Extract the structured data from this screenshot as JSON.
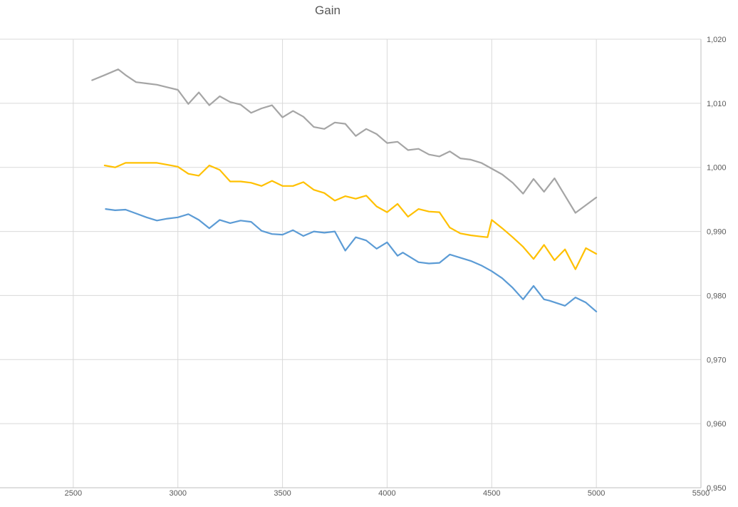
{
  "chart_data": {
    "type": "line",
    "title": "Gain",
    "xlabel": "",
    "ylabel": "",
    "xlim": [
      2000,
      5500
    ],
    "ylim": [
      0.95,
      1.02
    ],
    "x_ticks": [
      "2500",
      "3000",
      "3500",
      "4000",
      "4500",
      "5000",
      "5500"
    ],
    "y_ticks": [
      "0,950",
      "0,960",
      "0,970",
      "0,980",
      "0,990",
      "1,000",
      "1,010",
      "1,020"
    ],
    "y_axis_side": "right",
    "grid": true,
    "legend": "none",
    "series": [
      {
        "color": "#a5a5a5",
        "points": [
          [
            2590,
            1.0136
          ],
          [
            2650,
            1.0144
          ],
          [
            2715,
            1.0153
          ],
          [
            2750,
            1.0144
          ],
          [
            2800,
            1.0133
          ],
          [
            2850,
            1.0131
          ],
          [
            2900,
            1.0129
          ],
          [
            2950,
            1.0125
          ],
          [
            3000,
            1.0121
          ],
          [
            3050,
            1.0099
          ],
          [
            3100,
            1.0117
          ],
          [
            3150,
            1.0097
          ],
          [
            3200,
            1.0111
          ],
          [
            3250,
            1.0102
          ],
          [
            3300,
            1.0098
          ],
          [
            3350,
            1.0085
          ],
          [
            3400,
            1.0092
          ],
          [
            3450,
            1.0097
          ],
          [
            3500,
            1.0078
          ],
          [
            3550,
            1.0088
          ],
          [
            3600,
            1.0079
          ],
          [
            3650,
            1.0063
          ],
          [
            3700,
            1.006
          ],
          [
            3750,
            1.007
          ],
          [
            3800,
            1.0068
          ],
          [
            3850,
            1.0049
          ],
          [
            3900,
            1.006
          ],
          [
            3950,
            1.0052
          ],
          [
            4000,
            1.0038
          ],
          [
            4050,
            1.004
          ],
          [
            4100,
            1.0027
          ],
          [
            4150,
            1.0029
          ],
          [
            4200,
            1.002
          ],
          [
            4250,
            1.0017
          ],
          [
            4300,
            1.0025
          ],
          [
            4350,
            1.0014
          ],
          [
            4400,
            1.0012
          ],
          [
            4450,
            1.0007
          ],
          [
            4500,
            0.9998
          ],
          [
            4550,
            0.9989
          ],
          [
            4600,
            0.9976
          ],
          [
            4650,
            0.9959
          ],
          [
            4700,
            0.9982
          ],
          [
            4750,
            0.9962
          ],
          [
            4800,
            0.9983
          ],
          [
            4850,
            0.9956
          ],
          [
            4900,
            0.9929
          ],
          [
            5000,
            0.9953
          ]
        ]
      },
      {
        "color": "#ffc000",
        "points": [
          [
            2650,
            1.0003
          ],
          [
            2700,
            1.0
          ],
          [
            2750,
            1.0007
          ],
          [
            2800,
            1.0007
          ],
          [
            2850,
            1.0007
          ],
          [
            2900,
            1.0007
          ],
          [
            2950,
            1.0004
          ],
          [
            3000,
            1.0001
          ],
          [
            3050,
            0.999
          ],
          [
            3100,
            0.9987
          ],
          [
            3150,
            1.0003
          ],
          [
            3200,
            0.9996
          ],
          [
            3250,
            0.9978
          ],
          [
            3300,
            0.9978
          ],
          [
            3350,
            0.9976
          ],
          [
            3400,
            0.9971
          ],
          [
            3450,
            0.9979
          ],
          [
            3500,
            0.9971
          ],
          [
            3550,
            0.9971
          ],
          [
            3600,
            0.9977
          ],
          [
            3650,
            0.9965
          ],
          [
            3700,
            0.996
          ],
          [
            3750,
            0.9948
          ],
          [
            3800,
            0.9955
          ],
          [
            3850,
            0.9951
          ],
          [
            3900,
            0.9956
          ],
          [
            3950,
            0.9939
          ],
          [
            4000,
            0.993
          ],
          [
            4050,
            0.9943
          ],
          [
            4100,
            0.9923
          ],
          [
            4150,
            0.9935
          ],
          [
            4200,
            0.9931
          ],
          [
            4250,
            0.993
          ],
          [
            4300,
            0.9906
          ],
          [
            4350,
            0.9897
          ],
          [
            4400,
            0.9894
          ],
          [
            4450,
            0.9892
          ],
          [
            4480,
            0.9891
          ],
          [
            4500,
            0.9918
          ],
          [
            4550,
            0.9905
          ],
          [
            4600,
            0.9891
          ],
          [
            4650,
            0.9876
          ],
          [
            4700,
            0.9857
          ],
          [
            4750,
            0.9879
          ],
          [
            4800,
            0.9855
          ],
          [
            4850,
            0.9872
          ],
          [
            4900,
            0.9841
          ],
          [
            4950,
            0.9874
          ],
          [
            5000,
            0.9865
          ]
        ]
      },
      {
        "color": "#5b9bd5",
        "points": [
          [
            2655,
            0.9935
          ],
          [
            2700,
            0.9933
          ],
          [
            2750,
            0.9934
          ],
          [
            2800,
            0.9928
          ],
          [
            2850,
            0.9922
          ],
          [
            2900,
            0.9917
          ],
          [
            2950,
            0.992
          ],
          [
            3000,
            0.9922
          ],
          [
            3050,
            0.9927
          ],
          [
            3100,
            0.9918
          ],
          [
            3150,
            0.9905
          ],
          [
            3200,
            0.9918
          ],
          [
            3250,
            0.9913
          ],
          [
            3300,
            0.9917
          ],
          [
            3350,
            0.9915
          ],
          [
            3400,
            0.9901
          ],
          [
            3450,
            0.9896
          ],
          [
            3500,
            0.9895
          ],
          [
            3550,
            0.9902
          ],
          [
            3600,
            0.9893
          ],
          [
            3650,
            0.99
          ],
          [
            3700,
            0.9898
          ],
          [
            3750,
            0.99
          ],
          [
            3800,
            0.987
          ],
          [
            3850,
            0.9891
          ],
          [
            3900,
            0.9886
          ],
          [
            3950,
            0.9873
          ],
          [
            4000,
            0.9883
          ],
          [
            4050,
            0.9862
          ],
          [
            4075,
            0.9867
          ],
          [
            4150,
            0.9852
          ],
          [
            4200,
            0.985
          ],
          [
            4250,
            0.9851
          ],
          [
            4300,
            0.9864
          ],
          [
            4350,
            0.9859
          ],
          [
            4400,
            0.9854
          ],
          [
            4450,
            0.9847
          ],
          [
            4500,
            0.9838
          ],
          [
            4550,
            0.9827
          ],
          [
            4600,
            0.9812
          ],
          [
            4650,
            0.9794
          ],
          [
            4700,
            0.9815
          ],
          [
            4750,
            0.9794
          ],
          [
            4775,
            0.9792
          ],
          [
            4850,
            0.9784
          ],
          [
            4900,
            0.9797
          ],
          [
            4950,
            0.9789
          ],
          [
            5000,
            0.9775
          ]
        ]
      }
    ]
  }
}
